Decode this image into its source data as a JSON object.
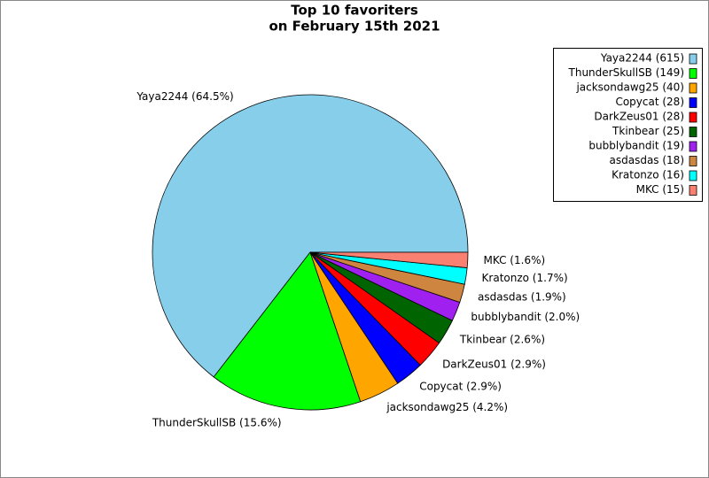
{
  "chart_data": {
    "type": "pie",
    "title": [
      "Top 10 favoriters",
      "on February 15th 2021"
    ],
    "categories": [
      "Yaya2244",
      "ThunderSkullSB",
      "jacksondawg25",
      "Copycat",
      "DarkZeus01",
      "Tkinbear",
      "bubblybandit",
      "asdasdas",
      "Kratonzo",
      "MKC"
    ],
    "values": [
      615,
      149,
      40,
      28,
      28,
      25,
      19,
      18,
      16,
      15
    ],
    "labels": [
      "Yaya2244 (64.5%)",
      "ThunderSkullSB (15.6%)",
      "jacksondawg25 (4.2%)",
      "Copycat (2.9%)",
      "DarkZeus01 (2.9%)",
      "Tkinbear (2.6%)",
      "bubblybandit (2.0%)",
      "asdasdas (1.9%)",
      "Kratonzo (1.7%)",
      "MKC (1.6%)"
    ],
    "legend_labels": [
      "Yaya2244 (615)",
      "ThunderSkullSB (149)",
      "jacksondawg25 (40)",
      "Copycat (28)",
      "DarkZeus01 (28)",
      "Tkinbear (25)",
      "bubblybandit (19)",
      "asdasdas (18)",
      "Kratonzo (16)",
      "MKC (15)"
    ],
    "colors": [
      "#87ceeb",
      "#00ff00",
      "#ffa500",
      "#0000ff",
      "#ff0000",
      "#006400",
      "#a020f0",
      "#cd853f",
      "#00ffff",
      "#fa8072"
    ],
    "legend_position": "upper right"
  }
}
